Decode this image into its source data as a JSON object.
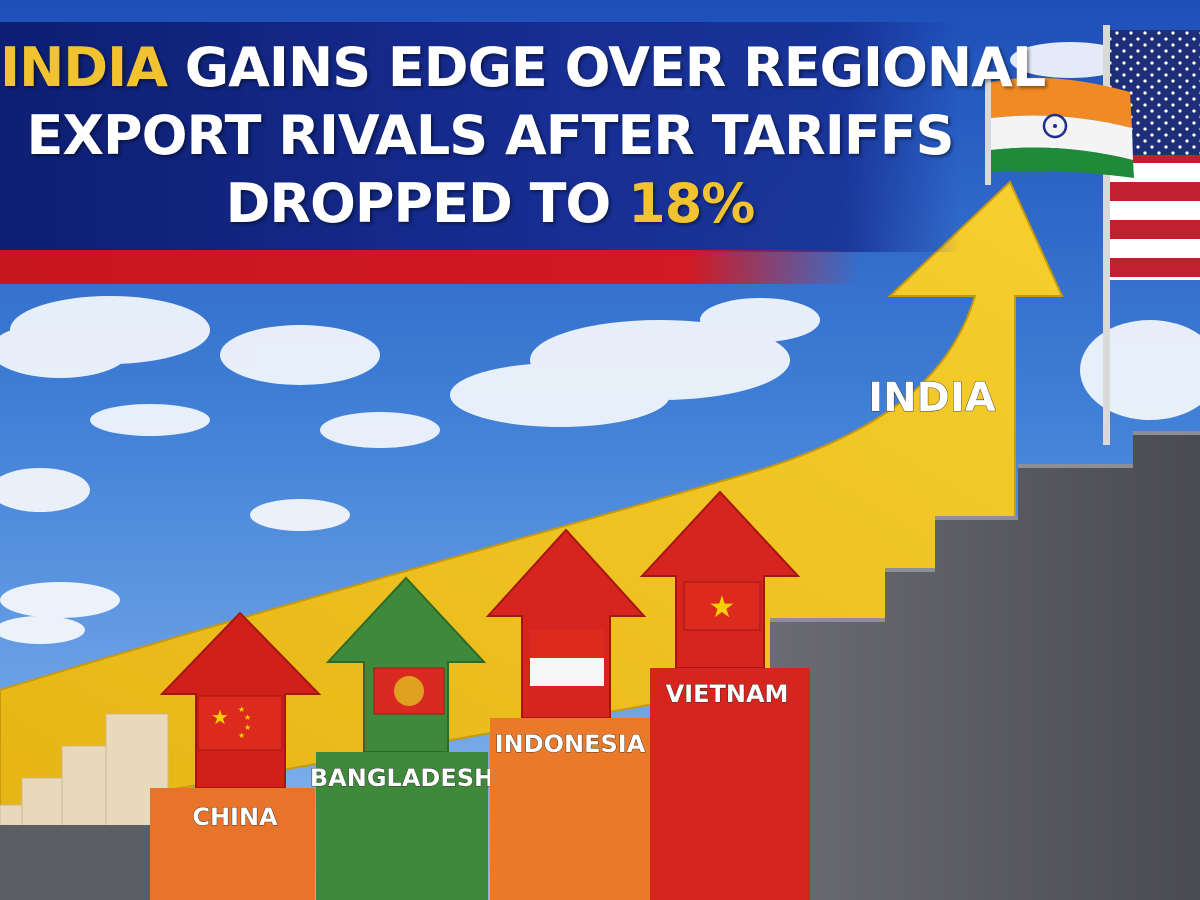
{
  "headline": {
    "part1_highlight": "INDIA",
    "part1_rest": " GAINS EDGE OVER REGIONAL",
    "line2": "EXPORT RIVALS AFTER TARIFFS",
    "line3_text": "DROPPED TO ",
    "line3_highlight": "18%"
  },
  "labels": {
    "india": "INDIA",
    "vietnam": "VIETNAM",
    "indonesia": "INDONESIA",
    "bangladesh": "BANGLADESH",
    "china": "CHINA"
  },
  "colors": {
    "banner_blue": "#172e93",
    "accent_red": "#d11a22",
    "headline_gold": "#f2c330",
    "india_arrow_yellow": "#f0c21c",
    "china_block": "#e8732a",
    "bangladesh_block": "#3f8a3a",
    "indonesia_block": "#ea7a2a",
    "vietnam_block": "#d6241e",
    "stairs_gray": "#55565c"
  },
  "icons": [
    "india-flag-icon",
    "usa-flag-icon",
    "china-flag-icon",
    "bangladesh-flag-icon",
    "indonesia-flag-icon",
    "vietnam-flag-icon"
  ]
}
